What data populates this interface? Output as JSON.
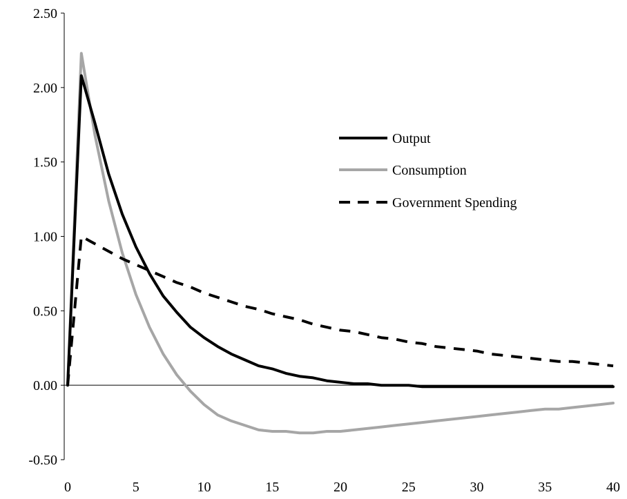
{
  "chart_data": {
    "type": "line",
    "title": "",
    "xlabel": "",
    "ylabel": "",
    "xlim": [
      0,
      40
    ],
    "ylim": [
      -0.5,
      2.5
    ],
    "yticks": [
      "-0.50",
      "0.00",
      "0.50",
      "1.00",
      "1.50",
      "2.00",
      "2.50"
    ],
    "xticks": [
      "0",
      "5",
      "10",
      "15",
      "20",
      "25",
      "30",
      "35",
      "40"
    ],
    "legend_position": "right",
    "grid": false,
    "x": [
      0,
      1,
      2,
      3,
      4,
      5,
      6,
      7,
      8,
      9,
      10,
      11,
      12,
      13,
      14,
      15,
      16,
      17,
      18,
      19,
      20,
      21,
      22,
      23,
      24,
      25,
      26,
      27,
      28,
      29,
      30,
      31,
      32,
      33,
      34,
      35,
      36,
      37,
      38,
      39,
      40
    ],
    "series": [
      {
        "name": "Output",
        "color": "#000000",
        "style": "solid",
        "values": [
          0.0,
          2.08,
          1.76,
          1.42,
          1.15,
          0.93,
          0.75,
          0.6,
          0.49,
          0.39,
          0.32,
          0.26,
          0.21,
          0.17,
          0.13,
          0.11,
          0.08,
          0.06,
          0.05,
          0.03,
          0.02,
          0.01,
          0.01,
          0.0,
          0.0,
          0.0,
          -0.01,
          -0.01,
          -0.01,
          -0.01,
          -0.01,
          -0.01,
          -0.01,
          -0.01,
          -0.01,
          -0.01,
          -0.01,
          -0.01,
          -0.01,
          -0.01,
          -0.01
        ]
      },
      {
        "name": "Consumption",
        "color": "#a6a6a6",
        "style": "solid",
        "values": [
          0.0,
          2.23,
          1.68,
          1.24,
          0.89,
          0.61,
          0.39,
          0.21,
          0.07,
          -0.04,
          -0.13,
          -0.2,
          -0.24,
          -0.27,
          -0.3,
          -0.31,
          -0.31,
          -0.32,
          -0.32,
          -0.31,
          -0.31,
          -0.3,
          -0.29,
          -0.28,
          -0.27,
          -0.26,
          -0.25,
          -0.24,
          -0.23,
          -0.22,
          -0.21,
          -0.2,
          -0.19,
          -0.18,
          -0.17,
          -0.16,
          -0.16,
          -0.15,
          -0.14,
          -0.13,
          -0.12
        ]
      },
      {
        "name": "Government Spending",
        "color": "#000000",
        "style": "dashed",
        "values": [
          0.0,
          1.0,
          0.95,
          0.9,
          0.85,
          0.81,
          0.77,
          0.73,
          0.69,
          0.66,
          0.62,
          0.59,
          0.56,
          0.53,
          0.51,
          0.48,
          0.46,
          0.44,
          0.41,
          0.39,
          0.37,
          0.36,
          0.34,
          0.32,
          0.31,
          0.29,
          0.28,
          0.26,
          0.25,
          0.24,
          0.23,
          0.21,
          0.2,
          0.19,
          0.18,
          0.17,
          0.16,
          0.16,
          0.15,
          0.14,
          0.13
        ]
      }
    ]
  }
}
